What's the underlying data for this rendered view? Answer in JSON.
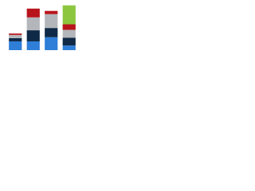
{
  "chart_data": {
    "type": "stacked-bar",
    "categories": [
      null,
      null,
      null,
      null
    ],
    "ylim": [
      0,
      100
    ],
    "series": [
      {
        "color": "#2f7ed8",
        "values": [
          19,
          19,
          28,
          10
        ]
      },
      {
        "color": "#0f2a47",
        "values": [
          7,
          24,
          20,
          17
        ]
      },
      {
        "color": "#b3b6ba",
        "values": [
          7,
          28,
          30,
          17
        ]
      },
      {
        "color": "#b8141c",
        "values": [
          3,
          19,
          7,
          12
        ]
      },
      {
        "color": "#8cc63f",
        "values": [
          null,
          null,
          null,
          41
        ]
      }
    ]
  }
}
